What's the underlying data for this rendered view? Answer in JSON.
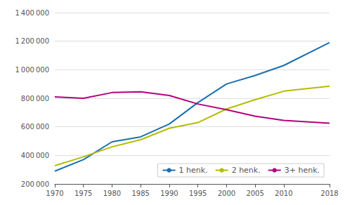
{
  "chart_data": {
    "type": "line",
    "x": [
      1970,
      1975,
      1980,
      1985,
      1990,
      1995,
      2000,
      2005,
      2010,
      2018
    ],
    "series": [
      {
        "name": "1 henk.",
        "color": "#1a6faf",
        "values": [
          290000,
          370000,
          495000,
          530000,
          620000,
          770000,
          900000,
          960000,
          1030000,
          1190000
        ]
      },
      {
        "name": "2 henk.",
        "color": "#b5bd00",
        "values": [
          328000,
          390000,
          460000,
          510000,
          590000,
          630000,
          725000,
          790000,
          850000,
          885000
        ]
      },
      {
        "name": "3+ henk.",
        "color": "#b5007d",
        "values": [
          810000,
          800000,
          840000,
          845000,
          820000,
          760000,
          720000,
          675000,
          645000,
          625000
        ]
      }
    ],
    "xlim": [
      1970,
      2018
    ],
    "xticks": [
      1970,
      1975,
      1980,
      1985,
      1990,
      1995,
      2000,
      2005,
      2010,
      2018
    ],
    "ylim": [
      200000,
      1400000
    ],
    "yticks": [
      {
        "value": 200000,
        "label": "200 000"
      },
      {
        "value": 400000,
        "label": "400 000"
      },
      {
        "value": 600000,
        "label": "600 000"
      },
      {
        "value": 800000,
        "label": "800 000"
      },
      {
        "value": 1000000,
        "label": "1 000 000"
      },
      {
        "value": 1200000,
        "label": "1 200 000"
      },
      {
        "value": 1400000,
        "label": "1 400 000"
      }
    ],
    "grid": true,
    "legend": "lower right"
  }
}
